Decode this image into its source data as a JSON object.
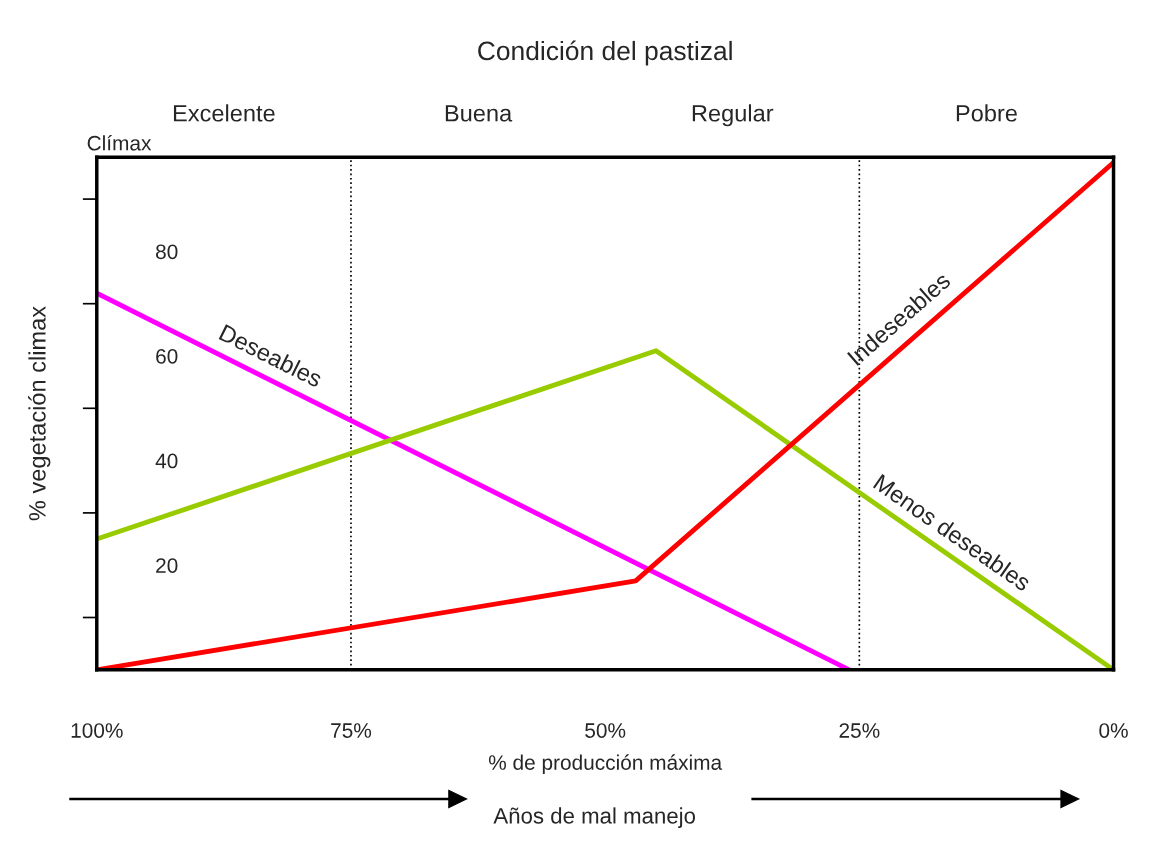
{
  "chart_data": {
    "type": "line",
    "title": "Condición del pastizal",
    "xlabel": "% de producción máxima",
    "ylabel": "% vegetación climax",
    "series": [
      {
        "name": "Deseables",
        "color": "#ff00ff",
        "x": [
          100,
          26
        ],
        "values": [
          72,
          0
        ]
      },
      {
        "name": "Menos deseables",
        "color": "#99cc00",
        "x": [
          100,
          45,
          0
        ],
        "values": [
          25,
          61,
          0
        ]
      },
      {
        "name": "Indeseables",
        "color": "#ff0000",
        "x": [
          100,
          47,
          0
        ],
        "values": [
          0,
          17,
          97
        ]
      }
    ],
    "xlim": [
      100,
      0
    ],
    "xticks": [
      {
        "value": 100,
        "label": "100%"
      },
      {
        "value": 75,
        "label": "75%"
      },
      {
        "value": 50,
        "label": "50%"
      },
      {
        "value": 25,
        "label": "25%"
      },
      {
        "value": 0,
        "label": "0%"
      }
    ],
    "ylim": [
      0,
      98
    ],
    "yticks": [
      {
        "value": 10,
        "label": null
      },
      20,
      {
        "value": 30,
        "label": null
      },
      40,
      {
        "value": 50,
        "label": null
      },
      60,
      {
        "value": 70,
        "label": null
      },
      80,
      {
        "value": 90,
        "label": null
      }
    ],
    "ref_lines": [
      {
        "axis": "x",
        "value": 75,
        "line_style": "dotted",
        "color": "#000000"
      },
      {
        "axis": "x",
        "value": 25,
        "line_style": "dotted",
        "color": "#000000"
      }
    ],
    "annotations": [
      "Clímax",
      "Excelente",
      "Buena",
      "Regular",
      "Pobre",
      "Años de mal manejo"
    ],
    "grid": false,
    "legend": false,
    "marker": "none",
    "line_style": "solid"
  }
}
